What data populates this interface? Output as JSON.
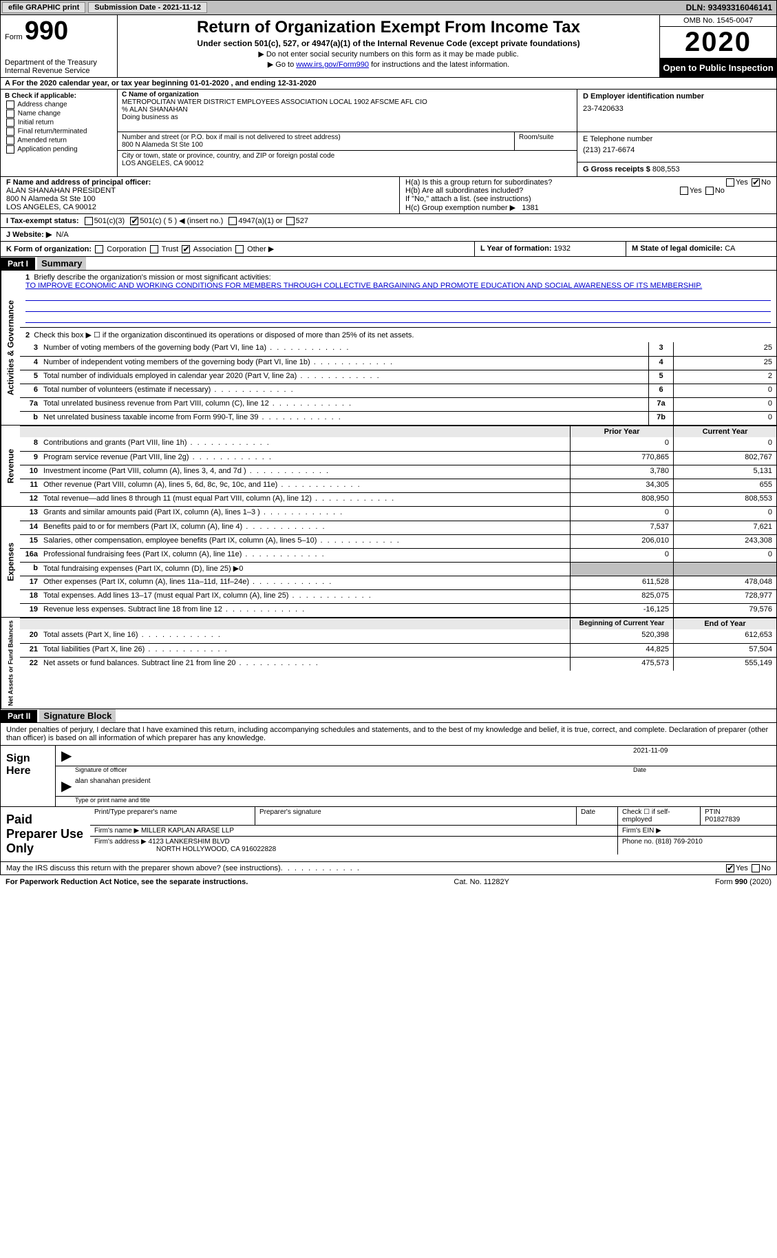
{
  "topbar": {
    "efile": "efile GRAPHIC print",
    "submission_label": "Submission Date - ",
    "submission_date": "2021-11-12",
    "dln_label": "DLN: ",
    "dln": "93493316046141"
  },
  "header": {
    "form_label": "Form",
    "form_number": "990",
    "dept": "Department of the Treasury\nInternal Revenue Service",
    "title": "Return of Organization Exempt From Income Tax",
    "subtitle": "Under section 501(c), 527, or 4947(a)(1) of the Internal Revenue Code (except private foundations)",
    "note1": "▶ Do not enter social security numbers on this form as it may be made public.",
    "note2_pre": "▶ Go to ",
    "note2_link": "www.irs.gov/Form990",
    "note2_post": " for instructions and the latest information.",
    "omb": "OMB No. 1545-0047",
    "year": "2020",
    "inspection": "Open to Public Inspection"
  },
  "period": {
    "label_a": "A For the 2020 calendar year, or tax year beginning ",
    "begin": "01-01-2020",
    "mid": " , and ending ",
    "end": "12-31-2020"
  },
  "box_b": {
    "header": "B Check if applicable:",
    "opts": [
      "Address change",
      "Name change",
      "Initial return",
      "Final return/terminated",
      "Amended return",
      "Application pending"
    ]
  },
  "box_c": {
    "name_label": "C Name of organization",
    "name": "METROPOLITAN WATER DISTRICT EMPLOYEES ASSOCIATION LOCAL 1902 AFSCME AFL CIO",
    "co": "% ALAN SHANAHAN",
    "dba_label": "Doing business as",
    "addr_label": "Number and street (or P.O. box if mail is not delivered to street address)",
    "addr": "800 N Alameda St Ste 100",
    "room_label": "Room/suite",
    "city_label": "City or town, state or province, country, and ZIP or foreign postal code",
    "city": "LOS ANGELES, CA  90012"
  },
  "box_d": {
    "ein_label": "D Employer identification number",
    "ein": "23-7420633",
    "tel_label": "E Telephone number",
    "tel": "(213) 217-6674",
    "gross_label": "G Gross receipts $ ",
    "gross": "808,553"
  },
  "box_f": {
    "label": "F Name and address of principal officer:",
    "name": "ALAN SHANAHAN PRESIDENT",
    "addr1": "800 N Alameda St Ste 100",
    "addr2": "LOS ANGELES, CA  90012"
  },
  "box_h": {
    "a_label": "H(a)  Is this a group return for subordinates?",
    "a_yes": "Yes",
    "a_no": "No",
    "b_label": "H(b)  Are all subordinates included?",
    "b_yes": "Yes",
    "b_no": "No",
    "b_note": "If \"No,\" attach a list. (see instructions)",
    "c_label": "H(c)  Group exemption number ▶",
    "c_val": "1381"
  },
  "row_i": {
    "label": "I  Tax-exempt status:",
    "o1": "501(c)(3)",
    "o2": "501(c) ( 5 ) ◀ (insert no.)",
    "o3": "4947(a)(1) or",
    "o4": "527"
  },
  "row_j": {
    "label": "J  Website: ▶",
    "val": "N/A"
  },
  "row_k": {
    "label": "K Form of organization:",
    "opts": [
      "Corporation",
      "Trust",
      "Association",
      "Other ▶"
    ],
    "checked_idx": 2
  },
  "row_l": {
    "label": "L Year of formation: ",
    "val": "1932"
  },
  "row_m": {
    "label": "M State of legal domicile: ",
    "val": "CA"
  },
  "part1": {
    "bar": "Part I",
    "title": "Summary",
    "sections": {
      "gov": "Activities & Governance",
      "rev": "Revenue",
      "exp": "Expenses",
      "net": "Net Assets or Fund Balances"
    },
    "line1_label": "Briefly describe the organization's mission or most significant activities:",
    "line1_text": "TO IMPROVE ECONOMIC AND WORKING CONDITIONS FOR MEMBERS THROUGH COLLECTIVE BARGAINING AND PROMOTE EDUCATION AND SOCIAL AWARENESS OF ITS MEMBERSHIP.",
    "line2": "Check this box ▶ ☐ if the organization discontinued its operations or disposed of more than 25% of its net assets.",
    "gov_lines": [
      {
        "n": "3",
        "t": "Number of voting members of the governing body (Part VI, line 1a)",
        "box": "3",
        "v": "25"
      },
      {
        "n": "4",
        "t": "Number of independent voting members of the governing body (Part VI, line 1b)",
        "box": "4",
        "v": "25"
      },
      {
        "n": "5",
        "t": "Total number of individuals employed in calendar year 2020 (Part V, line 2a)",
        "box": "5",
        "v": "2"
      },
      {
        "n": "6",
        "t": "Total number of volunteers (estimate if necessary)",
        "box": "6",
        "v": "0"
      },
      {
        "n": "7a",
        "t": "Total unrelated business revenue from Part VIII, column (C), line 12",
        "box": "7a",
        "v": "0"
      },
      {
        "n": "b",
        "t": "Net unrelated business taxable income from Form 990-T, line 39",
        "box": "7b",
        "v": "0"
      }
    ],
    "col_prior": "Prior Year",
    "col_current": "Current Year",
    "rev_lines": [
      {
        "n": "8",
        "t": "Contributions and grants (Part VIII, line 1h)",
        "p": "0",
        "c": "0"
      },
      {
        "n": "9",
        "t": "Program service revenue (Part VIII, line 2g)",
        "p": "770,865",
        "c": "802,767"
      },
      {
        "n": "10",
        "t": "Investment income (Part VIII, column (A), lines 3, 4, and 7d )",
        "p": "3,780",
        "c": "5,131"
      },
      {
        "n": "11",
        "t": "Other revenue (Part VIII, column (A), lines 5, 6d, 8c, 9c, 10c, and 11e)",
        "p": "34,305",
        "c": "655"
      },
      {
        "n": "12",
        "t": "Total revenue—add lines 8 through 11 (must equal Part VIII, column (A), line 12)",
        "p": "808,950",
        "c": "808,553"
      }
    ],
    "exp_lines": [
      {
        "n": "13",
        "t": "Grants and similar amounts paid (Part IX, column (A), lines 1–3 )",
        "p": "0",
        "c": "0"
      },
      {
        "n": "14",
        "t": "Benefits paid to or for members (Part IX, column (A), line 4)",
        "p": "7,537",
        "c": "7,621"
      },
      {
        "n": "15",
        "t": "Salaries, other compensation, employee benefits (Part IX, column (A), lines 5–10)",
        "p": "206,010",
        "c": "243,308"
      },
      {
        "n": "16a",
        "t": "Professional fundraising fees (Part IX, column (A), line 11e)",
        "p": "0",
        "c": "0"
      },
      {
        "n": "b",
        "t": "Total fundraising expenses (Part IX, column (D), line 25) ▶0",
        "p": "",
        "c": "",
        "gray": true
      },
      {
        "n": "17",
        "t": "Other expenses (Part IX, column (A), lines 11a–11d, 11f–24e)",
        "p": "611,528",
        "c": "478,048"
      },
      {
        "n": "18",
        "t": "Total expenses. Add lines 13–17 (must equal Part IX, column (A), line 25)",
        "p": "825,075",
        "c": "728,977"
      },
      {
        "n": "19",
        "t": "Revenue less expenses. Subtract line 18 from line 12",
        "p": "-16,125",
        "c": "79,576"
      }
    ],
    "col_begin": "Beginning of Current Year",
    "col_end": "End of Year",
    "net_lines": [
      {
        "n": "20",
        "t": "Total assets (Part X, line 16)",
        "p": "520,398",
        "c": "612,653"
      },
      {
        "n": "21",
        "t": "Total liabilities (Part X, line 26)",
        "p": "44,825",
        "c": "57,504"
      },
      {
        "n": "22",
        "t": "Net assets or fund balances. Subtract line 21 from line 20",
        "p": "475,573",
        "c": "555,149"
      }
    ]
  },
  "part2": {
    "bar": "Part II",
    "title": "Signature Block",
    "decl": "Under penalties of perjury, I declare that I have examined this return, including accompanying schedules and statements, and to the best of my knowledge and belief, it is true, correct, and complete. Declaration of preparer (other than officer) is based on all information of which preparer has any knowledge.",
    "sign_here": "Sign Here",
    "sig_officer": "Signature of officer",
    "sig_date_label": "Date",
    "sig_date": "2021-11-09",
    "sig_name": "alan shanahan  president",
    "sig_name_label": "Type or print name and title",
    "paid": "Paid Preparer Use Only",
    "prep_name_label": "Print/Type preparer's name",
    "prep_sig_label": "Preparer's signature",
    "prep_date_label": "Date",
    "prep_check": "Check ☐ if self-employed",
    "ptin_label": "PTIN",
    "ptin": "P01827839",
    "firm_name_label": "Firm's name  ▶",
    "firm_name": "MILLER KAPLAN ARASE LLP",
    "firm_ein_label": "Firm's EIN ▶",
    "firm_addr_label": "Firm's address ▶",
    "firm_addr1": "4123 LANKERSHIM BLVD",
    "firm_addr2": "NORTH HOLLYWOOD, CA  916022828",
    "firm_phone_label": "Phone no. ",
    "firm_phone": "(818) 769-2010",
    "discuss": "May the IRS discuss this return with the preparer shown above? (see instructions)",
    "yes": "Yes",
    "no": "No"
  },
  "footer": {
    "left": "For Paperwork Reduction Act Notice, see the separate instructions.",
    "mid": "Cat. No. 11282Y",
    "right": "Form 990 (2020)"
  },
  "colors": {
    "link": "#0000cc",
    "gray_bg": "#c0c0c0",
    "black": "#000000"
  }
}
